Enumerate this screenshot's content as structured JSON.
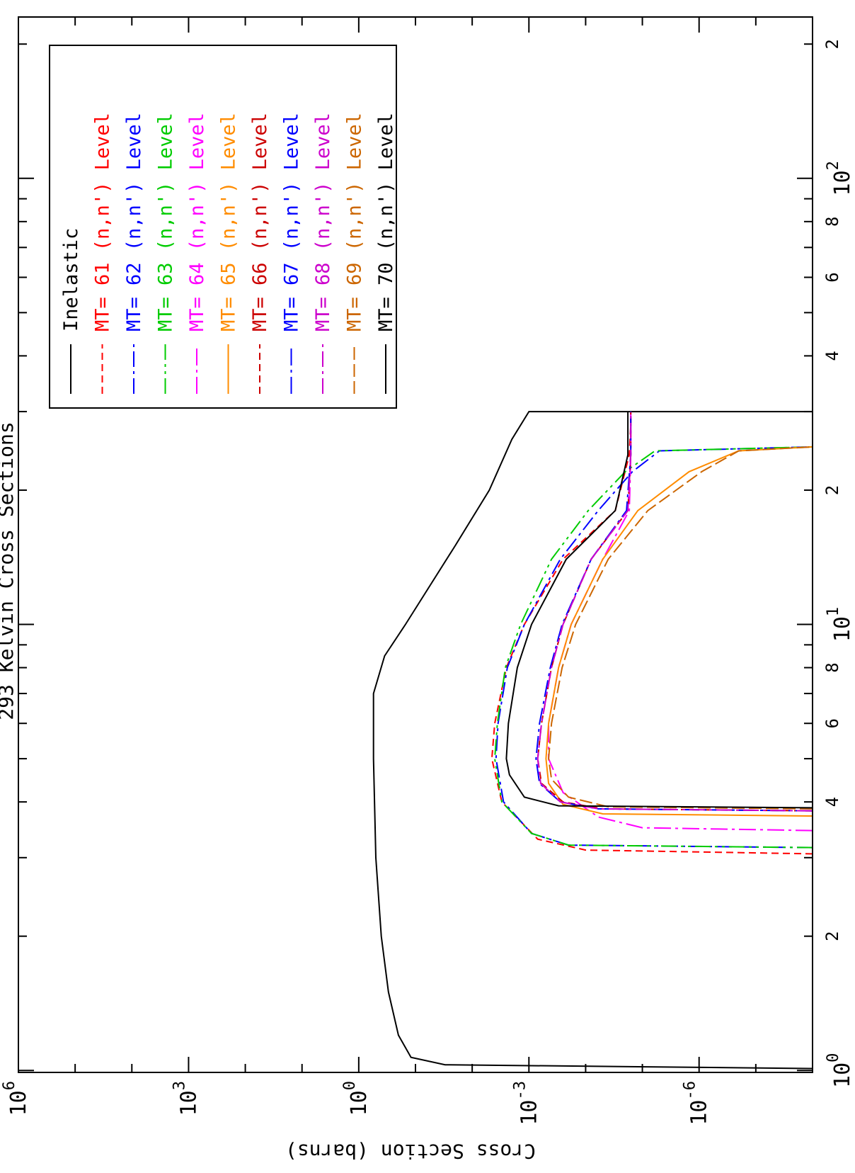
{
  "chart_data": {
    "type": "line",
    "title": "293 Kelvin Cross Sections",
    "ylabel": "Cross Section (barns)",
    "xlabel": "",
    "x_scale": "log",
    "y_scale": "log",
    "xlim": [
      0.99,
      230
    ],
    "ylim": [
      1e-08,
      1000000.0
    ],
    "grid": false,
    "legend_position": "top-right",
    "x_major_ticks": [
      {
        "value": 1,
        "base": "10",
        "exp": "0"
      },
      {
        "value": 10,
        "base": "10",
        "exp": "1"
      },
      {
        "value": 100,
        "base": "10",
        "exp": "2"
      }
    ],
    "x_minor_labels": [
      {
        "value": 2,
        "label": "2"
      },
      {
        "value": 4,
        "label": "4"
      },
      {
        "value": 6,
        "label": "6"
      },
      {
        "value": 8,
        "label": "8"
      },
      {
        "value": 20,
        "label": "2"
      },
      {
        "value": 40,
        "label": "4"
      },
      {
        "value": 60,
        "label": "6"
      },
      {
        "value": 80,
        "label": "8"
      },
      {
        "value": 200,
        "label": "2"
      }
    ],
    "y_major_ticks": [
      {
        "value": 1000000.0,
        "base": "10",
        "exp": "6"
      },
      {
        "value": 1000.0,
        "base": "10",
        "exp": "3"
      },
      {
        "value": 1,
        "base": "10",
        "exp": "0"
      },
      {
        "value": 0.001,
        "base": "10",
        "exp": "-3"
      },
      {
        "value": 1e-06,
        "base": "10",
        "exp": "-6"
      }
    ],
    "series": [
      {
        "name": "Inelastic",
        "color": "#000000",
        "dash": "",
        "points": [
          [
            1.01,
            1e-08
          ],
          [
            1.03,
            0.03
          ],
          [
            1.07,
            0.12
          ],
          [
            1.2,
            0.2
          ],
          [
            1.5,
            0.3
          ],
          [
            2.0,
            0.4
          ],
          [
            3.0,
            0.5
          ],
          [
            5.0,
            0.55
          ],
          [
            7.0,
            0.55
          ],
          [
            8.5,
            0.35
          ],
          [
            10,
            0.15
          ],
          [
            15,
            0.02
          ],
          [
            20,
            0.005
          ],
          [
            26,
            0.002
          ],
          [
            30,
            0.001
          ],
          [
            30,
            1e-08
          ]
        ]
      },
      {
        "name": "MT= 61 (n,n') Level",
        "color": "#ff0000",
        "dash": "10,6",
        "points": [
          [
            3.06,
            1e-08
          ],
          [
            3.12,
            0.0001
          ],
          [
            3.3,
            0.0007
          ],
          [
            4.0,
            0.003
          ],
          [
            5.0,
            0.0045
          ],
          [
            6.0,
            0.004
          ],
          [
            8.0,
            0.0025
          ],
          [
            10,
            0.0012
          ],
          [
            14,
            0.00025
          ],
          [
            18,
            3e-05
          ],
          [
            24,
            1.7e-05
          ],
          [
            28,
            1.6e-05
          ],
          [
            30,
            1.6e-05
          ]
        ]
      },
      {
        "name": "MT= 62 (n,n') Level",
        "color": "#0000ff",
        "dash": "22,6,4,6",
        "points": [
          [
            3.16,
            1e-08
          ],
          [
            3.2,
            0.0002
          ],
          [
            3.4,
            0.0009
          ],
          [
            4.0,
            0.0028
          ],
          [
            5.0,
            0.0038
          ],
          [
            6.0,
            0.0035
          ],
          [
            8.0,
            0.0024
          ],
          [
            10,
            0.0012
          ],
          [
            14,
            0.00028
          ],
          [
            18,
            6e-05
          ],
          [
            22,
            1.5e-05
          ],
          [
            24.5,
            5e-06
          ],
          [
            25,
            1e-08
          ]
        ]
      },
      {
        "name": "MT= 63 (n,n') Level",
        "color": "#00cc00",
        "dash": "22,6,4,6,4,6",
        "points": [
          [
            3.16,
            1e-08
          ],
          [
            3.2,
            0.0002
          ],
          [
            3.4,
            0.0009
          ],
          [
            4.0,
            0.003
          ],
          [
            5.0,
            0.004
          ],
          [
            6.0,
            0.0036
          ],
          [
            8.0,
            0.0026
          ],
          [
            10,
            0.0014
          ],
          [
            14,
            0.0004
          ],
          [
            18,
            9e-05
          ],
          [
            22,
            2e-05
          ],
          [
            24.5,
            6e-06
          ],
          [
            25,
            1e-08
          ]
        ]
      },
      {
        "name": "MT= 64 (n,n') Level",
        "color": "#ff00ff",
        "dash": "24,6,4,6",
        "points": [
          [
            3.45,
            1e-08
          ],
          [
            3.5,
            1e-05
          ],
          [
            3.7,
            6e-05
          ],
          [
            4.2,
            0.00025
          ],
          [
            5.0,
            0.00045
          ],
          [
            6.0,
            0.00045
          ],
          [
            8.0,
            0.0003
          ],
          [
            10,
            0.00018
          ],
          [
            14,
            5e-05
          ],
          [
            18,
            1.7e-05
          ],
          [
            24,
            1.6e-05
          ],
          [
            30,
            1.6e-05
          ]
        ]
      },
      {
        "name": "MT= 65 (n,n') Level",
        "color": "#ff8c00",
        "dash": "",
        "points": [
          [
            3.72,
            1e-08
          ],
          [
            3.76,
            5e-05
          ],
          [
            3.95,
            0.00025
          ],
          [
            4.4,
            0.00045
          ],
          [
            5.0,
            0.0005
          ],
          [
            6.0,
            0.00045
          ],
          [
            8.0,
            0.0003
          ],
          [
            10,
            0.00018
          ],
          [
            14,
            5e-05
          ],
          [
            18,
            1.2e-05
          ],
          [
            22,
            1.5e-06
          ],
          [
            24.5,
            2e-07
          ],
          [
            25,
            1e-08
          ]
        ]
      },
      {
        "name": "MT= 66 (n,n') Level",
        "color": "#cc0000",
        "dash": "10,6",
        "points": [
          [
            3.82,
            1e-08
          ],
          [
            3.86,
            5e-05
          ],
          [
            4.0,
            0.00025
          ],
          [
            4.4,
            0.0006
          ],
          [
            5.0,
            0.0007
          ],
          [
            6.0,
            0.0006
          ],
          [
            8.0,
            0.0004
          ],
          [
            10,
            0.00025
          ],
          [
            14,
            8e-05
          ],
          [
            18,
            1.8e-05
          ],
          [
            24,
            1.6e-05
          ],
          [
            30,
            1.6e-05
          ]
        ]
      },
      {
        "name": "MT= 67 (n,n') Level",
        "color": "#0000ff",
        "dash": "24,6,4,6",
        "points": [
          [
            3.82,
            1e-08
          ],
          [
            3.86,
            6e-05
          ],
          [
            4.0,
            0.00028
          ],
          [
            4.4,
            0.00065
          ],
          [
            5.0,
            0.00075
          ],
          [
            6.0,
            0.00065
          ],
          [
            8.0,
            0.00042
          ],
          [
            10,
            0.00026
          ],
          [
            14,
            8e-05
          ],
          [
            18,
            1.9e-05
          ],
          [
            24,
            1.6e-05
          ],
          [
            30,
            1.6e-05
          ]
        ]
      },
      {
        "name": "MT= 68 (n,n') Level",
        "color": "#cc00cc",
        "dash": "22,6,4,6",
        "points": [
          [
            3.82,
            1e-08
          ],
          [
            3.86,
            6e-05
          ],
          [
            4.0,
            0.00028
          ],
          [
            4.4,
            0.00062
          ],
          [
            5.0,
            0.0007
          ],
          [
            6.0,
            0.0006
          ],
          [
            8.0,
            0.0004
          ],
          [
            10,
            0.00025
          ],
          [
            14,
            8e-05
          ],
          [
            18,
            1.8e-05
          ],
          [
            24,
            1.6e-05
          ],
          [
            30,
            1.6e-05
          ]
        ]
      },
      {
        "name": "MT= 69 (n,n') Level",
        "color": "#cc6600",
        "dash": "18,6",
        "points": [
          [
            3.86,
            1e-08
          ],
          [
            3.9,
            4e-05
          ],
          [
            4.1,
            0.0002
          ],
          [
            4.5,
            0.0004
          ],
          [
            5.0,
            0.00045
          ],
          [
            6.0,
            0.0004
          ],
          [
            8.0,
            0.00026
          ],
          [
            10,
            0.00015
          ],
          [
            14,
            4e-05
          ],
          [
            18,
            8e-06
          ],
          [
            22,
            9e-07
          ],
          [
            24.5,
            2e-07
          ],
          [
            25,
            1e-08
          ]
        ]
      },
      {
        "name": "MT= 70 (n,n') Level",
        "color": "#000000",
        "dash": "",
        "points": [
          [
            3.88,
            1e-08
          ],
          [
            3.92,
            0.0003
          ],
          [
            4.1,
            0.0012
          ],
          [
            4.6,
            0.0022
          ],
          [
            5.0,
            0.0025
          ],
          [
            6.0,
            0.0023
          ],
          [
            8.0,
            0.0016
          ],
          [
            10,
            0.0009
          ],
          [
            14,
            0.00022
          ],
          [
            18,
            3e-05
          ],
          [
            24,
            1.8e-05
          ],
          [
            30,
            1.8e-05
          ]
        ]
      }
    ]
  }
}
